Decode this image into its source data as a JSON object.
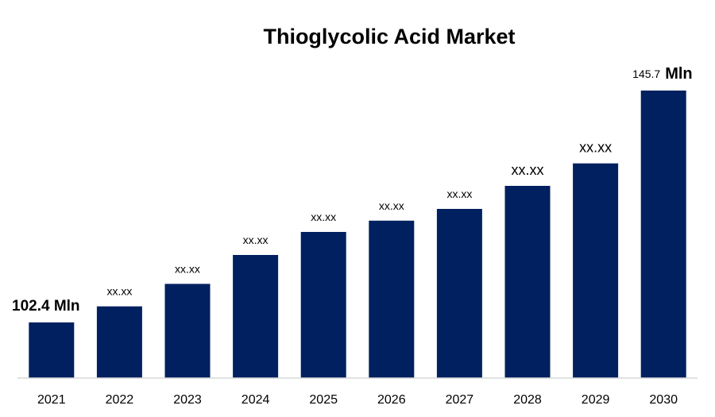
{
  "chart_data": {
    "type": "bar",
    "title": "Thioglycolic Acid Market",
    "xlabel": "",
    "ylabel": "",
    "categories": [
      "2021",
      "2022",
      "2023",
      "2024",
      "2025",
      "2026",
      "2027",
      "2028",
      "2029",
      "2030"
    ],
    "values": [
      102.4,
      105.4,
      109.6,
      115.0,
      119.3,
      121.4,
      123.6,
      127.9,
      132.1,
      145.7
    ],
    "data_labels": [
      "102.4 Mln",
      "xx.xx",
      "xx.xx",
      "xx.xx",
      "xx.xx",
      "xx.xx",
      "xx.xx",
      "xx.xx",
      "xx.xx",
      "145.7"
    ],
    "last_label_unit": "Mln",
    "ylim": [
      92,
      145.7
    ],
    "grid": false,
    "legend": "none",
    "colors": {
      "bar": "#002060",
      "axis": "#d9d9d9"
    }
  }
}
